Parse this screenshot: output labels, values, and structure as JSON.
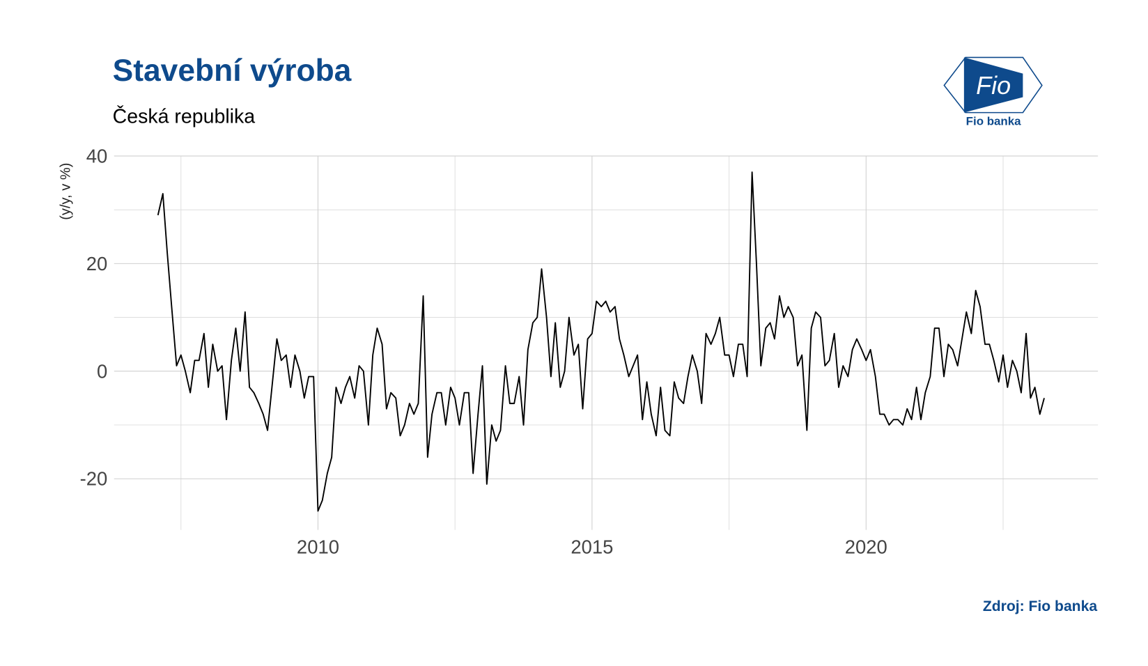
{
  "chart_data": {
    "type": "line",
    "title": "Stavební výroba",
    "subtitle": "Česká republika",
    "y_label": "(y/y, v %)",
    "source": "Zdroj: Fio banka",
    "logo_text": "Fio",
    "logo_caption": "Fio banka",
    "grid": true,
    "xlim": [
      2006.28,
      2024.23
    ],
    "xticks": [
      2010,
      2015,
      2020
    ],
    "xminor": [
      2007.5,
      2012.5,
      2017.5,
      2022.5
    ],
    "ylim": [
      -29.5,
      40
    ],
    "yticks": [
      -20,
      0,
      20,
      40
    ],
    "yminor": [
      -10,
      10,
      30
    ],
    "series": [
      {
        "color": "#000000",
        "x": [
          2007.08,
          2007.17,
          2007.25,
          2007.33,
          2007.42,
          2007.5,
          2007.58,
          2007.67,
          2007.75,
          2007.83,
          2007.92,
          2008,
          2008.08,
          2008.17,
          2008.25,
          2008.33,
          2008.42,
          2008.5,
          2008.58,
          2008.67,
          2008.75,
          2008.83,
          2008.92,
          2009,
          2009.08,
          2009.17,
          2009.25,
          2009.33,
          2009.42,
          2009.5,
          2009.58,
          2009.67,
          2009.75,
          2009.83,
          2009.92,
          2010,
          2010.08,
          2010.17,
          2010.25,
          2010.33,
          2010.42,
          2010.5,
          2010.58,
          2010.67,
          2010.75,
          2010.83,
          2010.92,
          2011,
          2011.08,
          2011.17,
          2011.25,
          2011.33,
          2011.42,
          2011.5,
          2011.58,
          2011.67,
          2011.75,
          2011.83,
          2011.92,
          2012,
          2012.08,
          2012.17,
          2012.25,
          2012.33,
          2012.42,
          2012.5,
          2012.58,
          2012.67,
          2012.75,
          2012.83,
          2012.92,
          2013,
          2013.08,
          2013.17,
          2013.25,
          2013.33,
          2013.42,
          2013.5,
          2013.58,
          2013.67,
          2013.75,
          2013.83,
          2013.92,
          2014,
          2014.08,
          2014.17,
          2014.25,
          2014.33,
          2014.42,
          2014.5,
          2014.58,
          2014.67,
          2014.75,
          2014.83,
          2014.92,
          2015,
          2015.08,
          2015.17,
          2015.25,
          2015.33,
          2015.42,
          2015.5,
          2015.58,
          2015.67,
          2015.75,
          2015.83,
          2015.92,
          2016,
          2016.08,
          2016.17,
          2016.25,
          2016.33,
          2016.42,
          2016.5,
          2016.58,
          2016.67,
          2016.75,
          2016.83,
          2016.92,
          2017,
          2017.08,
          2017.17,
          2017.25,
          2017.33,
          2017.42,
          2017.5,
          2017.58,
          2017.67,
          2017.75,
          2017.83,
          2017.92,
          2018,
          2018.08,
          2018.17,
          2018.25,
          2018.33,
          2018.42,
          2018.5,
          2018.58,
          2018.67,
          2018.75,
          2018.83,
          2018.92,
          2019,
          2019.08,
          2019.17,
          2019.25,
          2019.33,
          2019.42,
          2019.5,
          2019.58,
          2019.67,
          2019.75,
          2019.83,
          2019.92,
          2020,
          2020.08,
          2020.17,
          2020.25,
          2020.33,
          2020.42,
          2020.5,
          2020.58,
          2020.67,
          2020.75,
          2020.83,
          2020.92,
          2021,
          2021.08,
          2021.17,
          2021.25,
          2021.33,
          2021.42,
          2021.5,
          2021.58,
          2021.67,
          2021.75,
          2021.83,
          2021.92,
          2022,
          2022.08,
          2022.17,
          2022.25,
          2022.33,
          2022.42,
          2022.5,
          2022.58,
          2022.67,
          2022.75,
          2022.83,
          2022.92,
          2023,
          2023.08,
          2023.17,
          2023.25
        ],
        "values": [
          29,
          33,
          22,
          12,
          1,
          3,
          0,
          -4,
          2,
          2,
          7,
          -3,
          5,
          0,
          1,
          -9,
          2,
          8,
          0,
          11,
          -3,
          -4,
          -6,
          -8,
          -11,
          -2,
          6,
          2,
          3,
          -3,
          3,
          0,
          -5,
          -1,
          -1,
          -26,
          -24,
          -19,
          -16,
          -3,
          -6,
          -3,
          -1,
          -5,
          1,
          0,
          -10,
          3,
          8,
          5,
          -7,
          -4,
          -5,
          -12,
          -10,
          -6,
          -8,
          -6,
          14,
          -16,
          -8,
          -4,
          -4,
          -10,
          -3,
          -5,
          -10,
          -4,
          -4,
          -19,
          -8,
          1,
          -21,
          -10,
          -13,
          -11,
          1,
          -6,
          -6,
          -1,
          -10,
          4,
          9,
          10,
          19,
          10,
          -1,
          9,
          -3,
          0,
          10,
          3,
          5,
          -7,
          6,
          7,
          13,
          12,
          13,
          11,
          12,
          6,
          3,
          -1,
          1,
          3,
          -9,
          -2,
          -8,
          -12,
          -3,
          -11,
          -12,
          -2,
          -5,
          -6,
          -1,
          3,
          0,
          -6,
          7,
          5,
          7,
          10,
          3,
          3,
          -1,
          5,
          5,
          -1,
          37,
          20,
          1,
          8,
          9,
          6,
          14,
          10,
          12,
          10,
          1,
          3,
          -11,
          8,
          11,
          10,
          1,
          2,
          7,
          -3,
          1,
          -1,
          4,
          6,
          4,
          2,
          4,
          -1,
          -8,
          -8,
          -10,
          -9,
          -9,
          -10,
          -7,
          -9,
          -3,
          -9,
          -4,
          -1,
          8,
          8,
          -1,
          5,
          4,
          1,
          6,
          11,
          7,
          15,
          12,
          5,
          5,
          2,
          -2,
          3,
          -3,
          2,
          0,
          -4,
          7,
          -5,
          -3,
          -8,
          -5
        ]
      }
    ]
  }
}
